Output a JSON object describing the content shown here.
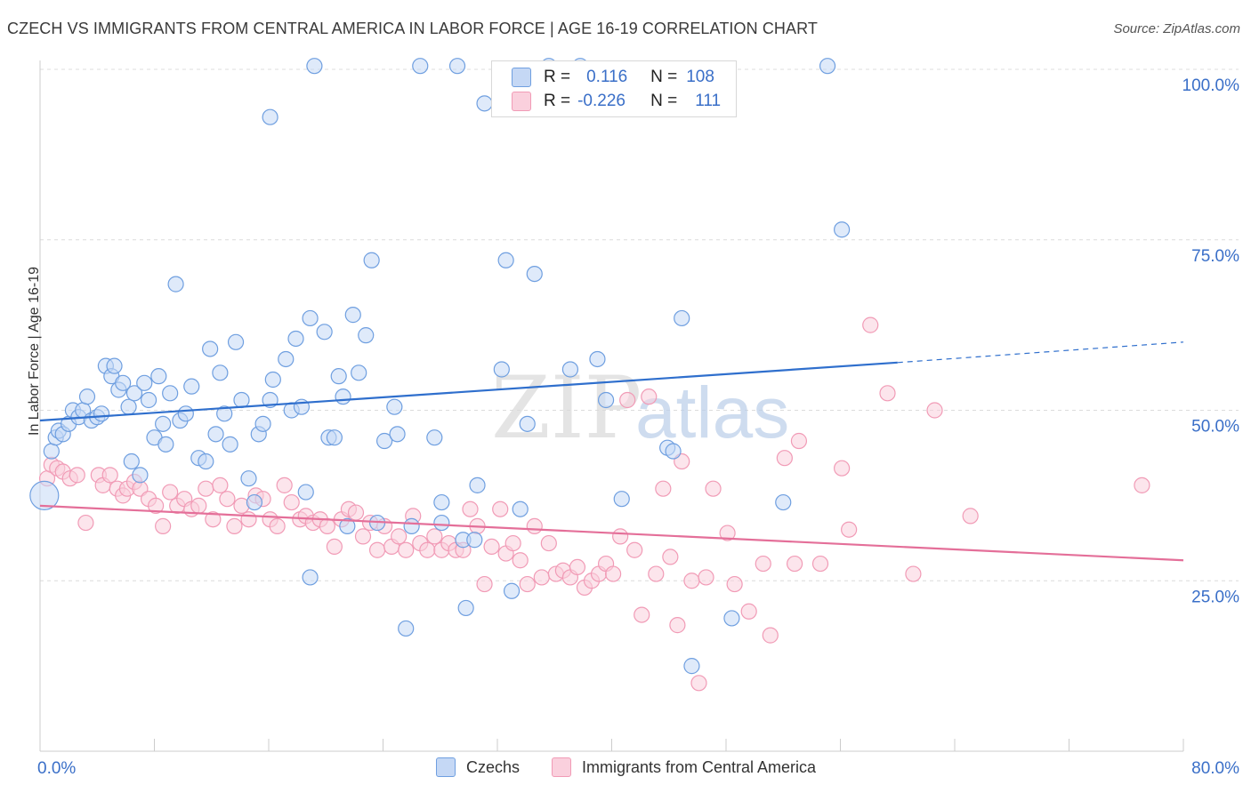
{
  "header": {
    "title": "CZECH VS IMMIGRANTS FROM CENTRAL AMERICA IN LABOR FORCE | AGE 16-19 CORRELATION CHART",
    "source": "Source: ZipAtlas.com"
  },
  "watermark": {
    "zip": "ZIP",
    "atlas": "atlas"
  },
  "legend": {
    "czechs": {
      "r_label": "R =",
      "r_value": "0.116",
      "n_label": "N =",
      "n_value": "108"
    },
    "immigrants": {
      "r_label": "R =",
      "r_value": "-0.226",
      "n_label": "N =",
      "n_value": "111"
    }
  },
  "chart_data": {
    "type": "scatter",
    "ylabel": "In Labor Force | Age 16-19",
    "x_tick_labels": {
      "left": "0.0%",
      "right": "80.0%"
    },
    "y_tick_labels": [
      "25.0%",
      "50.0%",
      "75.0%",
      "100.0%"
    ],
    "xlim": [
      0,
      80
    ],
    "ylim": [
      0,
      100
    ],
    "colors": {
      "czechs": "#6f9fe0",
      "immigrants": "#f19bb6",
      "czechs_line": "#2f6fcd",
      "immigrants_line": "#e46f99"
    },
    "series": [
      {
        "name": "Czechs",
        "trend": {
          "x": [
            0,
            60,
            80
          ],
          "y": [
            48.5,
            57,
            60
          ]
        },
        "points": [
          [
            0.3,
            37.5
          ],
          [
            0.8,
            44
          ],
          [
            1.1,
            46
          ],
          [
            1.3,
            47
          ],
          [
            1.6,
            46.5
          ],
          [
            2,
            48
          ],
          [
            2.3,
            50
          ],
          [
            2.7,
            49
          ],
          [
            3,
            50
          ],
          [
            3.3,
            52
          ],
          [
            3.6,
            48.5
          ],
          [
            4,
            49
          ],
          [
            4.3,
            49.5
          ],
          [
            4.6,
            56.5
          ],
          [
            5,
            55
          ],
          [
            5.2,
            56.5
          ],
          [
            5.5,
            53
          ],
          [
            5.8,
            54
          ],
          [
            6.2,
            50.5
          ],
          [
            6.4,
            42.5
          ],
          [
            6.6,
            52.5
          ],
          [
            7,
            40.5
          ],
          [
            7.3,
            54
          ],
          [
            7.6,
            51.5
          ],
          [
            8,
            46
          ],
          [
            8.3,
            55
          ],
          [
            8.6,
            48
          ],
          [
            8.8,
            45
          ],
          [
            9.1,
            52.5
          ],
          [
            9.5,
            68.5
          ],
          [
            9.8,
            48.5
          ],
          [
            10.2,
            49.5
          ],
          [
            10.6,
            53.5
          ],
          [
            11.1,
            43
          ],
          [
            11.6,
            42.5
          ],
          [
            11.9,
            59
          ],
          [
            12.3,
            46.5
          ],
          [
            12.6,
            55.5
          ],
          [
            12.9,
            49.5
          ],
          [
            13.3,
            45
          ],
          [
            13.7,
            60
          ],
          [
            14.1,
            51.5
          ],
          [
            14.6,
            40
          ],
          [
            15,
            36.5
          ],
          [
            15.3,
            46.5
          ],
          [
            15.6,
            48
          ],
          [
            16.1,
            51.5
          ],
          [
            16.3,
            54.5
          ],
          [
            16.1,
            93
          ],
          [
            17.2,
            57.5
          ],
          [
            17.6,
            50
          ],
          [
            17.9,
            60.5
          ],
          [
            18.3,
            50.5
          ],
          [
            18.6,
            38
          ],
          [
            18.9,
            63.5
          ],
          [
            18.9,
            25.5
          ],
          [
            19.2,
            100.5
          ],
          [
            19.9,
            61.5
          ],
          [
            20.2,
            46
          ],
          [
            20.6,
            46
          ],
          [
            20.9,
            55
          ],
          [
            21.2,
            52
          ],
          [
            21.5,
            33
          ],
          [
            21.9,
            64
          ],
          [
            22.3,
            55.5
          ],
          [
            22.8,
            61
          ],
          [
            23.2,
            72
          ],
          [
            23.6,
            33.5
          ],
          [
            24.1,
            45.5
          ],
          [
            25,
            46.5
          ],
          [
            24.8,
            50.5
          ],
          [
            25.6,
            18
          ],
          [
            26,
            33
          ],
          [
            26.6,
            100.5
          ],
          [
            27.6,
            46
          ],
          [
            28.1,
            36.5
          ],
          [
            28.1,
            33.5
          ],
          [
            29.2,
            100.5
          ],
          [
            29.6,
            31
          ],
          [
            29.8,
            21
          ],
          [
            30.4,
            31
          ],
          [
            30.6,
            39
          ],
          [
            31.1,
            95
          ],
          [
            32.3,
            56
          ],
          [
            32.6,
            72
          ],
          [
            33,
            23.5
          ],
          [
            33.6,
            35.5
          ],
          [
            34.1,
            48
          ],
          [
            34.6,
            70
          ],
          [
            35.6,
            100.5
          ],
          [
            37.1,
            56
          ],
          [
            37.8,
            100.5
          ],
          [
            39,
            57.5
          ],
          [
            39.6,
            51.5
          ],
          [
            40.7,
            37
          ],
          [
            43.9,
            44.5
          ],
          [
            44.3,
            44
          ],
          [
            44.9,
            63.5
          ],
          [
            45.6,
            12.5
          ],
          [
            48.4,
            19.5
          ],
          [
            52,
            36.5
          ],
          [
            55.1,
            100.5
          ],
          [
            56.1,
            76.5
          ]
        ]
      },
      {
        "name": "Immigrants from Central America",
        "trend": {
          "x": [
            0,
            80
          ],
          "y": [
            36,
            28
          ]
        },
        "points": [
          [
            0.5,
            40
          ],
          [
            0.8,
            42
          ],
          [
            1.2,
            41.5
          ],
          [
            1.6,
            41
          ],
          [
            2.1,
            40
          ],
          [
            2.6,
            40.5
          ],
          [
            3.2,
            33.5
          ],
          [
            4.1,
            40.5
          ],
          [
            4.4,
            39
          ],
          [
            4.9,
            40.5
          ],
          [
            5.4,
            38.5
          ],
          [
            5.8,
            37.5
          ],
          [
            6.1,
            38.5
          ],
          [
            6.6,
            39.5
          ],
          [
            7,
            38.5
          ],
          [
            7.6,
            37
          ],
          [
            8.1,
            36
          ],
          [
            8.6,
            33
          ],
          [
            9.1,
            38
          ],
          [
            9.6,
            36
          ],
          [
            10.1,
            37
          ],
          [
            10.6,
            35.5
          ],
          [
            11.1,
            36
          ],
          [
            11.6,
            38.5
          ],
          [
            12.1,
            34
          ],
          [
            12.6,
            39
          ],
          [
            13.1,
            37
          ],
          [
            13.6,
            33
          ],
          [
            14.1,
            36
          ],
          [
            14.6,
            34
          ],
          [
            15.1,
            37.5
          ],
          [
            15.6,
            37
          ],
          [
            16.1,
            34
          ],
          [
            16.6,
            33
          ],
          [
            17.1,
            39
          ],
          [
            17.6,
            36.5
          ],
          [
            18.2,
            34
          ],
          [
            18.6,
            34.5
          ],
          [
            19.1,
            33.5
          ],
          [
            19.6,
            34
          ],
          [
            20.1,
            33
          ],
          [
            20.6,
            30
          ],
          [
            21.1,
            34
          ],
          [
            21.6,
            35.5
          ],
          [
            22.1,
            35
          ],
          [
            22.6,
            31.5
          ],
          [
            23.1,
            33.5
          ],
          [
            23.6,
            29.5
          ],
          [
            24.1,
            33
          ],
          [
            24.6,
            30
          ],
          [
            25.1,
            31.5
          ],
          [
            25.6,
            29.5
          ],
          [
            26.1,
            34.5
          ],
          [
            26.6,
            30.5
          ],
          [
            27.1,
            29.5
          ],
          [
            27.6,
            31.5
          ],
          [
            28.1,
            29.5
          ],
          [
            28.6,
            30.5
          ],
          [
            29.1,
            29.5
          ],
          [
            29.6,
            29.5
          ],
          [
            30.1,
            35.5
          ],
          [
            30.6,
            33
          ],
          [
            31.1,
            24.5
          ],
          [
            31.6,
            30
          ],
          [
            32.2,
            35.5
          ],
          [
            32.6,
            29
          ],
          [
            33.1,
            30.5
          ],
          [
            33.6,
            28
          ],
          [
            34.1,
            24.5
          ],
          [
            34.6,
            33
          ],
          [
            35.1,
            25.5
          ],
          [
            35.6,
            30.5
          ],
          [
            36.1,
            26
          ],
          [
            36.6,
            26.5
          ],
          [
            37.1,
            25.5
          ],
          [
            37.6,
            27
          ],
          [
            38.1,
            24
          ],
          [
            38.6,
            25
          ],
          [
            39.1,
            26
          ],
          [
            39.6,
            27.5
          ],
          [
            40.1,
            26
          ],
          [
            40.6,
            31.5
          ],
          [
            41.1,
            51.5
          ],
          [
            41.6,
            29.5
          ],
          [
            42.1,
            20
          ],
          [
            42.6,
            52
          ],
          [
            43.1,
            26
          ],
          [
            43.6,
            38.5
          ],
          [
            44.1,
            28.5
          ],
          [
            44.6,
            18.5
          ],
          [
            44.9,
            42.5
          ],
          [
            45.6,
            25
          ],
          [
            46.1,
            10
          ],
          [
            46.6,
            25.5
          ],
          [
            47.1,
            38.5
          ],
          [
            48.1,
            32
          ],
          [
            48.6,
            24.5
          ],
          [
            49.6,
            20.5
          ],
          [
            50.6,
            27.5
          ],
          [
            51.1,
            17
          ],
          [
            52.1,
            43
          ],
          [
            52.8,
            27.5
          ],
          [
            53.1,
            45.5
          ],
          [
            54.6,
            27.5
          ],
          [
            56.1,
            41.5
          ],
          [
            56.6,
            32.5
          ],
          [
            58.1,
            62.5
          ],
          [
            59.3,
            52.5
          ],
          [
            61.1,
            26
          ],
          [
            62.6,
            50
          ],
          [
            65.1,
            34.5
          ],
          [
            77.1,
            39
          ]
        ]
      }
    ]
  }
}
